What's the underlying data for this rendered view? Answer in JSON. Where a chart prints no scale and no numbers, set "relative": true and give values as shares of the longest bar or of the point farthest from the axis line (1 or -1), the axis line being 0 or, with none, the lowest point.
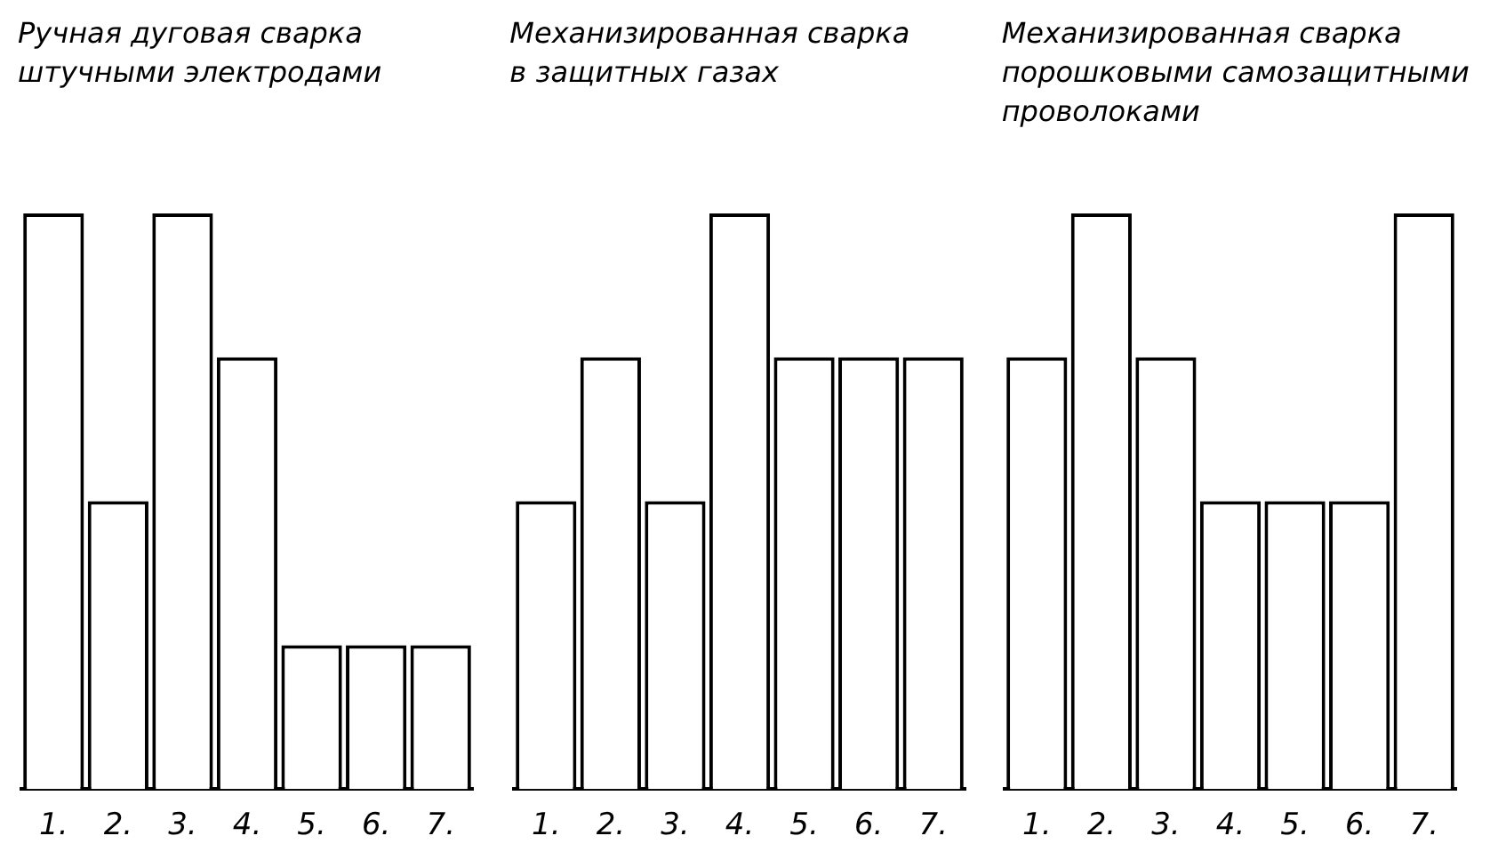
{
  "chart_data": [
    {
      "type": "bar",
      "title": "Ручная дуговая сварка\nштучными электродами",
      "categories": [
        "1.",
        "2.",
        "3.",
        "4.",
        "5.",
        "6.",
        "7."
      ],
      "values": [
        1,
        0.5,
        1,
        0.75,
        0.25,
        0.25,
        0.25
      ],
      "color": "#ffffff",
      "relative": true
    },
    {
      "type": "bar",
      "title": "Механизированная сварка\nв защитных газах",
      "categories": [
        "1.",
        "2.",
        "3.",
        "4.",
        "5.",
        "6.",
        "7."
      ],
      "values": [
        0.5,
        0.75,
        0.5,
        1,
        0.75,
        0.75,
        0.75
      ],
      "color": "#ffffff",
      "relative": true
    },
    {
      "type": "bar",
      "title": "Механизированная сварка\nпорошковыми самозащитными\nпроволоками",
      "categories": [
        "1.",
        "2.",
        "3.",
        "4.",
        "5.",
        "6.",
        "7."
      ],
      "values": [
        0.75,
        1,
        0.75,
        0.5,
        0.5,
        0.5,
        1
      ],
      "color": "#ffffff",
      "relative": true
    }
  ]
}
